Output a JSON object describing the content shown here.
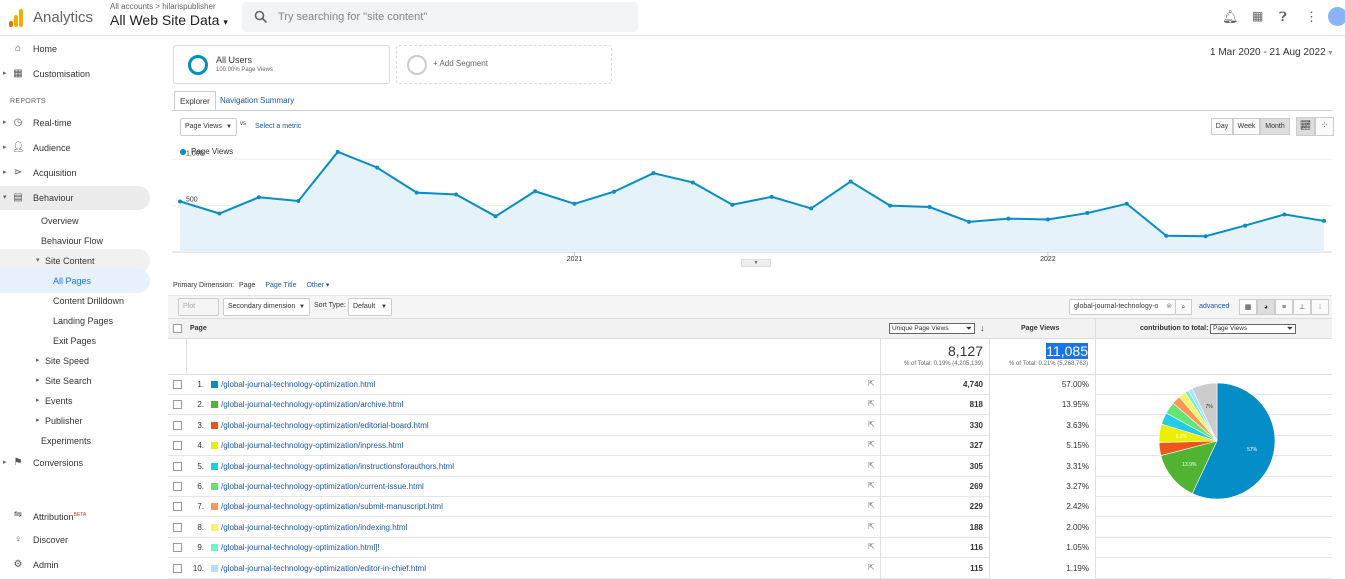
{
  "header": {
    "brand": "Analytics",
    "breadcrumb": "All accounts > hilarispublisher",
    "view_name": "All Web Site Data",
    "search_placeholder": "Try searching for \"site content\""
  },
  "sidebar": {
    "reports_label": "REPORTS",
    "items": [
      {
        "label": "Home",
        "icon": "home-icon"
      },
      {
        "label": "Customisation",
        "icon": "dashboard-icon"
      },
      {
        "label": "Real-time",
        "icon": "clock-icon"
      },
      {
        "label": "Audience",
        "icon": "person-icon"
      },
      {
        "label": "Acquisition",
        "icon": "acquisition-icon"
      },
      {
        "label": "Behaviour",
        "icon": "behaviour-icon"
      },
      {
        "label": "Overview"
      },
      {
        "label": "Behaviour Flow"
      },
      {
        "label": "Site Content"
      },
      {
        "label": "All Pages"
      },
      {
        "label": "Content Drilldown"
      },
      {
        "label": "Landing Pages"
      },
      {
        "label": "Exit Pages"
      },
      {
        "label": "Site Speed"
      },
      {
        "label": "Site Search"
      },
      {
        "label": "Events"
      },
      {
        "label": "Publisher"
      },
      {
        "label": "Experiments"
      },
      {
        "label": "Conversions",
        "icon": "flag-icon"
      },
      {
        "label": "Attribution",
        "badge": "BETA",
        "icon": "attribution-icon"
      },
      {
        "label": "Discover",
        "icon": "lightbulb-icon"
      },
      {
        "label": "Admin",
        "icon": "gear-icon"
      }
    ]
  },
  "segments": {
    "all_users_label": "All Users",
    "all_users_sub": "100.00% Page Views",
    "add_label": "+ Add Segment"
  },
  "date_range": "1 Mar 2020 - 21 Aug 2022",
  "tabs": [
    "Explorer",
    "Navigation Summary"
  ],
  "metric_selector": {
    "value": "Page Views",
    "vs": "vs",
    "select_metric": "Select a metric"
  },
  "period_buttons": [
    "Day",
    "Week",
    "Month"
  ],
  "chart_data": {
    "type": "line",
    "legend": "Page Views",
    "y_ticks": [
      500,
      1000
    ],
    "ylim": [
      0,
      1100
    ],
    "x_labels": [
      "2021",
      "2022"
    ],
    "values": [
      545,
      415,
      590,
      550,
      1080,
      910,
      640,
      620,
      385,
      655,
      520,
      650,
      850,
      750,
      510,
      595,
      470,
      760,
      500,
      485,
      325,
      360,
      350,
      420,
      520,
      175,
      170,
      285,
      405,
      335
    ],
    "color": "#058dc7"
  },
  "dimension_bar": {
    "label": "Primary Dimension:",
    "page": "Page",
    "page_title": "Page Title",
    "other": "Other"
  },
  "toolbar": {
    "plot_rows": "Plot Rows",
    "secondary": "Secondary dimension",
    "sort_type_label": "Sort Type:",
    "sort_type": "Default",
    "search_value": "global-journal-technology-o",
    "advanced": "advanced"
  },
  "table": {
    "col_page": "Page",
    "col_unique": "Unique Page Views",
    "col_views": "Page Views",
    "col_contrib_label": "contribution to total:",
    "col_contrib_value": "Page Views",
    "total_unique": "8,127",
    "total_unique_sub": "% of Total: 0.19% (4,205,139)",
    "total_views": "11,085",
    "total_views_sub": "% of Total: 0.21% (5,268,763)",
    "rows": [
      {
        "n": "1.",
        "page": "/global-journal-technology-optimization.html",
        "unique": "4,740",
        "pct": "57.00%",
        "color": "#058dc7"
      },
      {
        "n": "2.",
        "page": "/global-journal-technology-optimization/archive.html",
        "unique": "818",
        "pct": "13.95%",
        "color": "#50b432"
      },
      {
        "n": "3.",
        "page": "/global-journal-technology-optimization/editorial-board.html",
        "unique": "330",
        "pct": "3.63%",
        "color": "#ed561b"
      },
      {
        "n": "4.",
        "page": "/global-journal-technology-optimization/inpress.html",
        "unique": "327",
        "pct": "5.15%",
        "color": "#edef00"
      },
      {
        "n": "5.",
        "page": "/global-journal-technology-optimization/instructionsforauthors.html",
        "unique": "305",
        "pct": "3.31%",
        "color": "#24cbe5"
      },
      {
        "n": "6.",
        "page": "/global-journal-technology-optimization/current-issue.html",
        "unique": "269",
        "pct": "3.27%",
        "color": "#64e572"
      },
      {
        "n": "7.",
        "page": "/global-journal-technology-optimization/submit-manuscript.html",
        "unique": "229",
        "pct": "2.42%",
        "color": "#ff9655"
      },
      {
        "n": "8.",
        "page": "/global-journal-technology-optimization/indexing.html",
        "unique": "188",
        "pct": "2.00%",
        "color": "#fff263"
      },
      {
        "n": "9.",
        "page": "/global-journal-technology-optimization.html]!",
        "unique": "116",
        "pct": "1.05%",
        "color": "#6af9c4"
      },
      {
        "n": "10.",
        "page": "/global-journal-technology-optimization/editor-in-chief.html",
        "unique": "115",
        "pct": "1.19%",
        "color": "#b2deff"
      }
    ]
  },
  "pie": {
    "slices": [
      57,
      13.95,
      3.63,
      5.15,
      3.31,
      3.27,
      2.42,
      2.0,
      1.05,
      1.19,
      7.03
    ],
    "colors": [
      "#058dc7",
      "#50b432",
      "#ed561b",
      "#edef00",
      "#24cbe5",
      "#64e572",
      "#ff9655",
      "#fff263",
      "#6af9c4",
      "#b2deff",
      "#cccccc"
    ],
    "labels": [
      "57%",
      "13.9%",
      "",
      "5.2%",
      "",
      "",
      "",
      "",
      "",
      "",
      "7%"
    ]
  }
}
